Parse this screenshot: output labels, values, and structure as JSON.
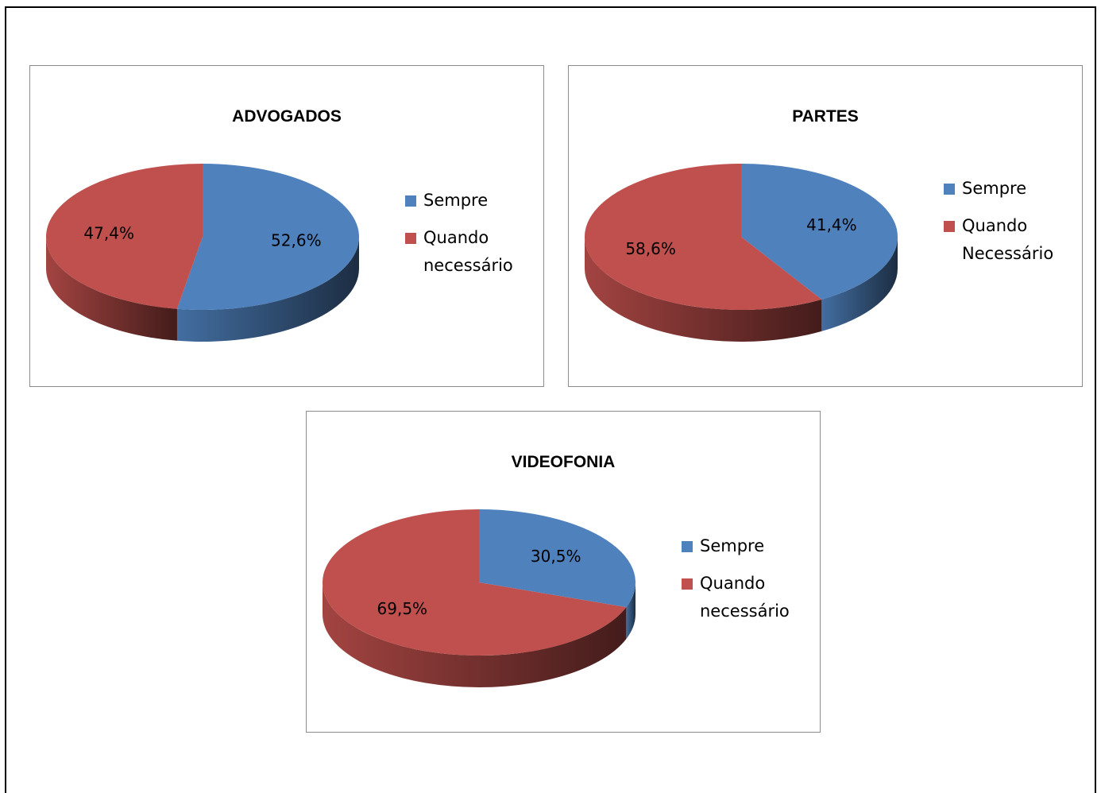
{
  "colors": {
    "sempre": "#4f81bd",
    "quando": "#c0504d"
  },
  "chart_data": [
    {
      "type": "pie",
      "title": "ADVOGADOS",
      "categories": [
        "Sempre",
        "Quando necessário"
      ],
      "values": [
        52.6,
        47.4
      ],
      "labels": [
        "52,6%",
        "47,4%"
      ],
      "legend_position": "right"
    },
    {
      "type": "pie",
      "title": "PARTES",
      "categories": [
        "Sempre",
        "Quando Necessário"
      ],
      "values": [
        41.4,
        58.6
      ],
      "labels": [
        "41,4%",
        "58,6%"
      ],
      "legend_position": "right"
    },
    {
      "type": "pie",
      "title": "VIDEOFONIA",
      "categories": [
        "Sempre",
        "Quando necessário"
      ],
      "values": [
        30.5,
        69.5
      ],
      "labels": [
        "30,5%",
        "69,5%"
      ],
      "legend_position": "right"
    }
  ]
}
